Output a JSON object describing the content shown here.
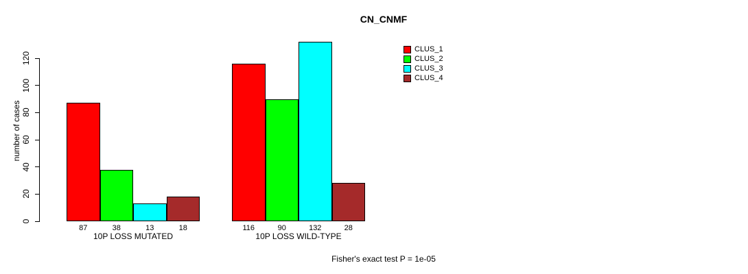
{
  "chart_data": {
    "type": "bar",
    "title": "CN_CNMF",
    "ylabel": "number of cases",
    "xlabel": "",
    "ylim": [
      0,
      120
    ],
    "yticks": [
      0,
      20,
      40,
      60,
      80,
      100,
      120
    ],
    "grid": false,
    "legend_position": "right",
    "categories": [
      "10P LOSS MUTATED",
      "10P LOSS WILD-TYPE"
    ],
    "series": [
      {
        "name": "CLUS_1",
        "color": "#ff0000",
        "values": [
          87,
          116
        ]
      },
      {
        "name": "CLUS_2",
        "color": "#00ff00",
        "values": [
          38,
          90
        ]
      },
      {
        "name": "CLUS_3",
        "color": "#00ffff",
        "values": [
          13,
          132
        ]
      },
      {
        "name": "CLUS_4",
        "color": "#a52a2a",
        "values": [
          18,
          28
        ]
      }
    ],
    "bar_value_labels": [
      [
        87,
        38,
        13,
        18
      ],
      [
        116,
        90,
        132,
        28
      ]
    ],
    "annotation": "Fisher's exact test P = 1e-05"
  }
}
